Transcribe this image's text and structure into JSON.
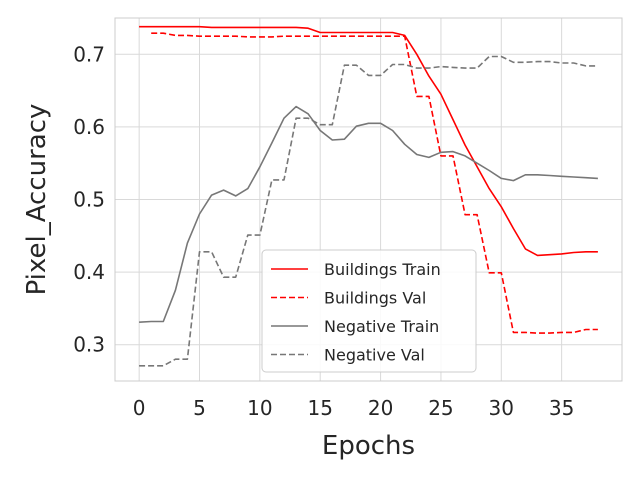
{
  "chart_data": {
    "type": "line",
    "xlabel": "Epochs",
    "ylabel": "Pixel_Accuracy",
    "xlim": [
      -2,
      40
    ],
    "ylim": [
      0.25,
      0.75
    ],
    "xticks": [
      0,
      5,
      10,
      15,
      20,
      25,
      30,
      35
    ],
    "yticks": [
      0.3,
      0.4,
      0.5,
      0.6,
      0.7
    ],
    "xtick_labels": [
      "0",
      "5",
      "10",
      "15",
      "20",
      "25",
      "30",
      "35"
    ],
    "ytick_labels": [
      "0.3",
      "0.4",
      "0.5",
      "0.6",
      "0.7"
    ],
    "grid": true,
    "legend_position": "lower-center",
    "series": [
      {
        "name": "Buildings Train",
        "color": "#ff0000",
        "dash": "solid",
        "x": [
          0,
          1,
          2,
          3,
          4,
          5,
          6,
          7,
          8,
          9,
          10,
          11,
          12,
          13,
          14,
          15,
          16,
          17,
          18,
          19,
          20,
          21,
          22,
          23,
          24,
          25,
          26,
          27,
          28,
          29,
          30,
          31,
          32,
          33,
          34,
          35,
          36,
          37,
          38
        ],
        "y": [
          0.738,
          0.738,
          0.738,
          0.738,
          0.738,
          0.738,
          0.737,
          0.737,
          0.737,
          0.737,
          0.737,
          0.737,
          0.737,
          0.737,
          0.736,
          0.73,
          0.73,
          0.73,
          0.73,
          0.73,
          0.73,
          0.73,
          0.726,
          0.7,
          0.67,
          0.645,
          0.61,
          0.575,
          0.545,
          0.515,
          0.49,
          0.46,
          0.432,
          0.423,
          0.424,
          0.425,
          0.427,
          0.428,
          0.428
        ]
      },
      {
        "name": "Buildings Val",
        "color": "#ff0000",
        "dash": "dashed",
        "x": [
          1,
          2,
          3,
          4,
          5,
          6,
          7,
          8,
          9,
          10,
          11,
          12,
          13,
          14,
          15,
          16,
          17,
          18,
          19,
          20,
          21,
          22,
          23,
          24,
          25,
          26,
          27,
          28,
          29,
          30,
          31,
          32,
          33,
          34,
          35,
          36,
          37,
          38
        ],
        "y": [
          0.729,
          0.729,
          0.726,
          0.726,
          0.725,
          0.725,
          0.725,
          0.725,
          0.724,
          0.724,
          0.724,
          0.725,
          0.725,
          0.725,
          0.725,
          0.725,
          0.725,
          0.725,
          0.725,
          0.725,
          0.725,
          0.725,
          0.642,
          0.642,
          0.56,
          0.56,
          0.479,
          0.479,
          0.399,
          0.399,
          0.317,
          0.317,
          0.316,
          0.316,
          0.317,
          0.317,
          0.321,
          0.321
        ]
      },
      {
        "name": "Negative Train",
        "color": "#777777",
        "dash": "solid",
        "x": [
          0,
          1,
          2,
          3,
          4,
          5,
          6,
          7,
          8,
          9,
          10,
          11,
          12,
          13,
          14,
          15,
          16,
          17,
          18,
          19,
          20,
          21,
          22,
          23,
          24,
          25,
          26,
          27,
          28,
          29,
          30,
          31,
          32,
          33,
          34,
          35,
          36,
          37,
          38
        ],
        "y": [
          0.331,
          0.332,
          0.332,
          0.375,
          0.44,
          0.48,
          0.506,
          0.513,
          0.505,
          0.515,
          0.545,
          0.578,
          0.612,
          0.628,
          0.618,
          0.595,
          0.582,
          0.583,
          0.601,
          0.605,
          0.605,
          0.595,
          0.576,
          0.562,
          0.558,
          0.565,
          0.566,
          0.56,
          0.55,
          0.54,
          0.529,
          0.526,
          0.534,
          0.534,
          0.533,
          0.532,
          0.531,
          0.53,
          0.529
        ]
      },
      {
        "name": "Negative Val",
        "color": "#777777",
        "dash": "dashed",
        "x": [
          0,
          1,
          2,
          3,
          4,
          5,
          6,
          7,
          8,
          9,
          10,
          11,
          12,
          13,
          14,
          15,
          16,
          17,
          18,
          19,
          20,
          21,
          22,
          23,
          24,
          25,
          26,
          27,
          28,
          29,
          30,
          31,
          32,
          33,
          34,
          35,
          36,
          37,
          38
        ],
        "y": [
          0.271,
          0.271,
          0.271,
          0.28,
          0.28,
          0.428,
          0.428,
          0.393,
          0.393,
          0.451,
          0.451,
          0.527,
          0.527,
          0.612,
          0.612,
          0.603,
          0.603,
          0.685,
          0.685,
          0.671,
          0.671,
          0.686,
          0.686,
          0.681,
          0.681,
          0.683,
          0.682,
          0.681,
          0.681,
          0.697,
          0.697,
          0.689,
          0.689,
          0.69,
          0.69,
          0.688,
          0.688,
          0.684,
          0.684
        ]
      }
    ]
  }
}
